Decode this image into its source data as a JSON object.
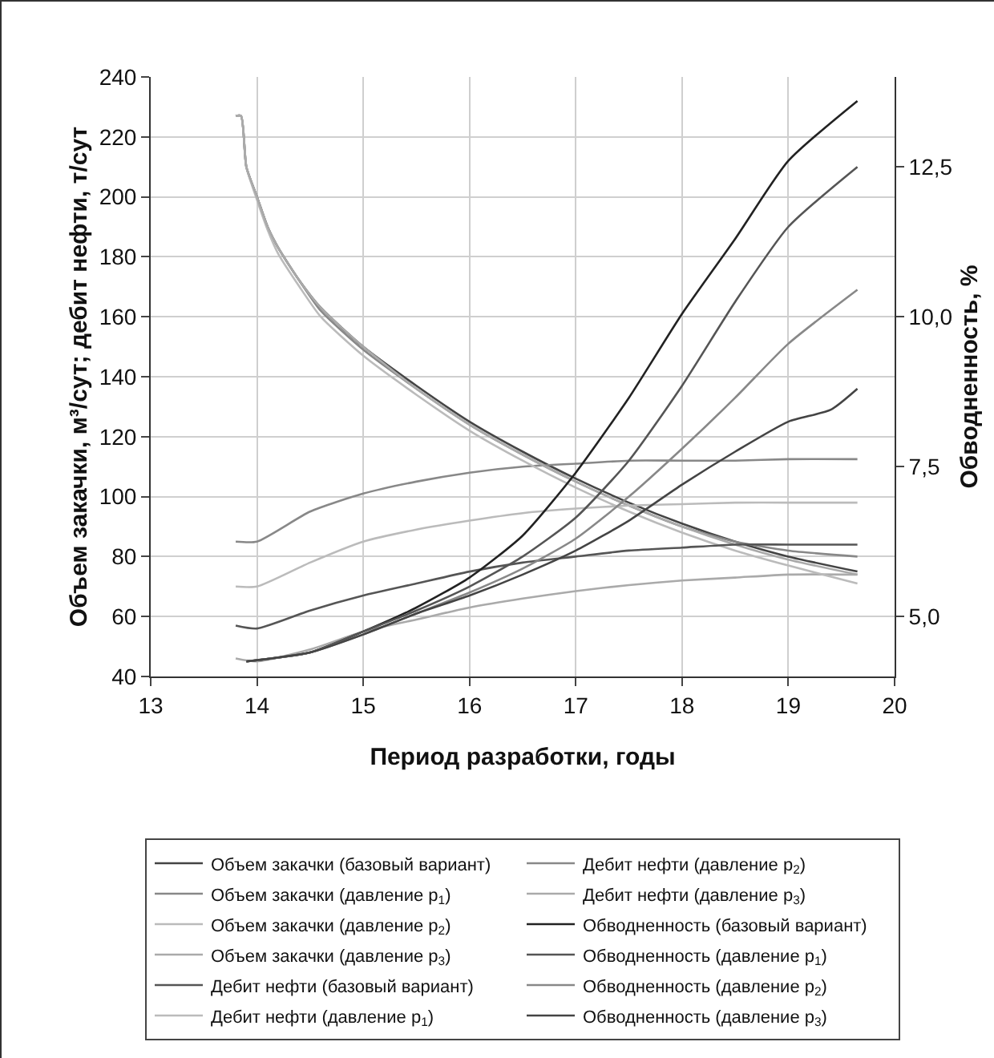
{
  "chart_data": {
    "type": "line",
    "xlabel": "Период разработки, годы",
    "ylabel": "Объем закачки, м³/сут; дебит нефти, т/сут",
    "y2label": "Обводненность, %",
    "xlim": [
      13,
      20
    ],
    "xticks": [
      13,
      14,
      15,
      16,
      17,
      18,
      19,
      20
    ],
    "ylim": [
      40,
      240
    ],
    "yticks": [
      40,
      60,
      80,
      100,
      120,
      140,
      160,
      180,
      200,
      220,
      240
    ],
    "y2lim": [
      4,
      14
    ],
    "y2ticks": [
      {
        "value": 5,
        "label": "5,0"
      },
      {
        "value": 7.5,
        "label": "7,5"
      },
      {
        "value": 10,
        "label": "10,0"
      },
      {
        "value": 12.5,
        "label": "12,5"
      }
    ],
    "grid": true,
    "legend": "bottom",
    "marker": "none",
    "line_style": "solid",
    "series": [
      {
        "name": "Объем закачки (базовый вариант)",
        "color": "#444444",
        "x": [
          13.8,
          13.85,
          13.9,
          14,
          14.1,
          14.2,
          14.4,
          14.6,
          15,
          15.5,
          16,
          16.5,
          17,
          17.5,
          18,
          18.5,
          19,
          19.65
        ],
        "values": [
          227,
          227,
          210,
          200,
          190,
          183,
          172,
          163,
          150,
          137,
          125,
          115,
          106,
          98,
          91,
          85,
          80,
          75
        ]
      },
      {
        "name": "Объем закачки (давление p$_{1}$)",
        "color": "#888888",
        "x": [
          13.8,
          13.85,
          13.9,
          14,
          14.1,
          14.2,
          14.4,
          14.6,
          15,
          15.5,
          16,
          16.5,
          17,
          17.5,
          18,
          18.5,
          19,
          19.65
        ],
        "values": [
          227,
          227,
          210,
          200,
          190,
          183,
          172,
          162,
          149,
          136,
          124,
          114,
          105,
          97,
          90,
          85,
          82,
          80
        ]
      },
      {
        "name": "Объем закачки (давление p$_{2}$)",
        "color": "#bbbbbb",
        "x": [
          13.8,
          13.85,
          13.9,
          14,
          14.1,
          14.2,
          14.4,
          14.6,
          15,
          15.5,
          16,
          16.5,
          17,
          17.5,
          18,
          18.5,
          19,
          19.65
        ],
        "values": [
          227,
          227,
          210,
          199,
          189,
          181,
          170,
          160,
          147,
          134,
          122,
          112,
          103,
          95,
          88,
          82,
          77,
          71
        ]
      },
      {
        "name": "Объем закачки (давление p$_{3}$)",
        "color": "#aaaaaa",
        "x": [
          13.8,
          13.85,
          13.9,
          14,
          14.1,
          14.2,
          14.4,
          14.6,
          15,
          15.5,
          16,
          16.5,
          17,
          17.5,
          18,
          18.5,
          19,
          19.65
        ],
        "values": [
          227,
          227,
          210,
          200,
          190,
          183,
          172,
          163,
          150,
          136,
          124,
          114,
          105,
          97,
          90,
          84,
          79,
          74
        ]
      },
      {
        "name": "Дебит нефти (базовый вариант)",
        "color": "#555555",
        "x": [
          13.8,
          14,
          14.5,
          15,
          15.5,
          16,
          16.5,
          17,
          17.5,
          18,
          18.5,
          19,
          19.65
        ],
        "values": [
          57,
          56,
          62,
          67,
          71,
          75,
          78,
          80,
          82,
          83,
          84,
          84,
          84
        ]
      },
      {
        "name": "Дебит нефти (давление p$_{1}$)",
        "color": "#bbbbbb",
        "x": [
          13.8,
          14,
          14.5,
          15,
          15.5,
          16,
          16.5,
          17,
          17.5,
          18,
          18.5,
          19,
          19.65
        ],
        "values": [
          70,
          70,
          78,
          85,
          89,
          92,
          94.5,
          96,
          97,
          97.5,
          98,
          98,
          98
        ]
      },
      {
        "name": "Дебит нефти (давление p$_{2}$)",
        "color": "#888888",
        "x": [
          13.8,
          14,
          14.5,
          15,
          15.5,
          16,
          16.5,
          17,
          17.5,
          18,
          18.5,
          19,
          19.65
        ],
        "values": [
          85,
          85,
          95,
          101,
          105,
          108,
          110,
          111,
          112,
          112,
          112,
          112.5,
          112.5
        ]
      },
      {
        "name": "Дебит нефти (давление p$_{3}$)",
        "color": "#aaaaaa",
        "x": [
          13.8,
          14,
          14.5,
          15,
          15.5,
          16,
          16.5,
          17,
          17.5,
          18,
          18.5,
          19,
          19.65
        ],
        "values": [
          46,
          45,
          49,
          55,
          59,
          63,
          66,
          68.5,
          70.5,
          72,
          73,
          74,
          74
        ]
      },
      {
        "name": "Обводненность (базовый вариант)",
        "color": "#222222",
        "axis": "y2",
        "x": [
          13.9,
          14.5,
          15,
          15.5,
          16,
          16.5,
          17,
          17.5,
          18,
          18.5,
          19,
          19.65
        ],
        "values": [
          4.25,
          4.4,
          4.75,
          5.15,
          5.65,
          6.35,
          7.4,
          8.65,
          10.05,
          11.3,
          12.6,
          13.6
        ]
      },
      {
        "name": "Обводненность (давление p$_{1}$)",
        "color": "#555555",
        "axis": "y2",
        "x": [
          13.9,
          14.5,
          15,
          15.5,
          16,
          16.5,
          17,
          17.5,
          18,
          18.5,
          19,
          19.65
        ],
        "values": [
          4.25,
          4.4,
          4.75,
          5.1,
          5.5,
          6.0,
          6.65,
          7.6,
          8.85,
          10.25,
          11.5,
          12.5
        ]
      },
      {
        "name": "Обводненность (давление p$_{2}$)",
        "color": "#888888",
        "axis": "y2",
        "x": [
          13.9,
          14.5,
          15,
          15.5,
          16,
          16.5,
          17,
          17.5,
          18,
          18.5,
          19,
          19.65
        ],
        "values": [
          4.25,
          4.4,
          4.7,
          5.05,
          5.4,
          5.8,
          6.3,
          7.0,
          7.8,
          8.65,
          9.55,
          10.45
        ]
      },
      {
        "name": "Обводненность (давление p$_{3}$)",
        "color": "#444444",
        "axis": "y2",
        "x": [
          13.9,
          14.5,
          15,
          15.5,
          16,
          16.5,
          17,
          17.5,
          18,
          18.5,
          19,
          19.4,
          19.65
        ],
        "values": [
          4.25,
          4.4,
          4.7,
          5.05,
          5.35,
          5.7,
          6.1,
          6.6,
          7.2,
          7.75,
          8.25,
          8.45,
          8.8
        ]
      }
    ]
  }
}
